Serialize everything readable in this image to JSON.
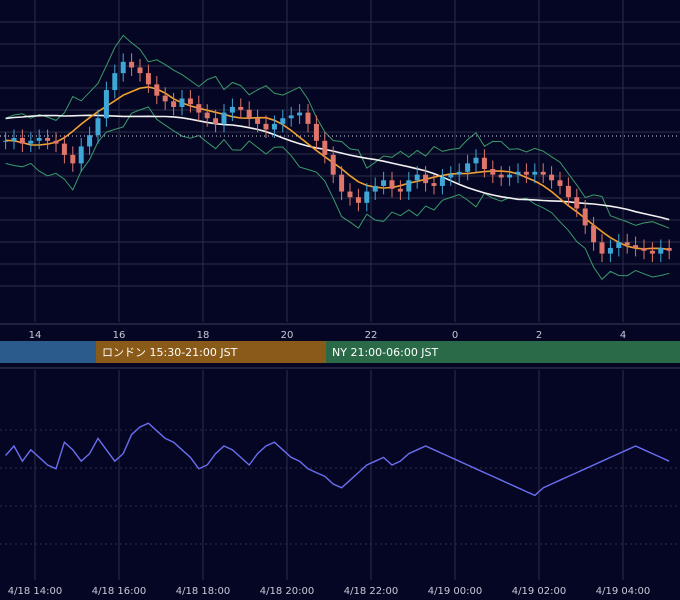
{
  "colors": {
    "background": "#050623",
    "grid": "#2a2d4a",
    "candle_up": "#3fa7d6",
    "candle_down": "#e0766a",
    "ma_short": "#f0a030",
    "ma_long": "#f2f2f2",
    "bollinger": "#3a9a6a",
    "rsi_line": "#6a6ef0",
    "session_tokyo": "#2b5a8c",
    "session_london": "#8a5a18",
    "session_ny": "#2a6a48"
  },
  "sessions": [
    {
      "label": "",
      "color_key": "session_tokyo"
    },
    {
      "label": "ロンドン 15:30-21:00 JST",
      "color_key": "session_london"
    },
    {
      "label": "NY 21:00-06:00 JST",
      "color_key": "session_ny"
    }
  ],
  "chart_data": [
    {
      "type": "candlestick",
      "x_axis_hour_ticks": [
        "14",
        "16",
        "18",
        "20",
        "22",
        "0",
        "2",
        "4"
      ],
      "x_range_hours": [
        13.2,
        29.2
      ],
      "y_range": [
        0,
        100
      ],
      "grid": true,
      "series": [
        {
          "name": "candles",
          "hours": [
            13.3,
            13.5,
            13.7,
            13.9,
            14.1,
            14.3,
            14.5,
            14.7,
            14.9,
            15.1,
            15.3,
            15.5,
            15.7,
            15.9,
            16.1,
            16.3,
            16.5,
            16.7,
            16.9,
            17.1,
            17.3,
            17.5,
            17.7,
            17.9,
            18.1,
            18.3,
            18.5,
            18.7,
            18.9,
            19.1,
            19.3,
            19.5,
            19.7,
            19.9,
            20.1,
            20.3,
            20.5,
            20.7,
            20.9,
            21.1,
            21.3,
            21.5,
            21.7,
            21.9,
            22.1,
            22.3,
            22.5,
            22.7,
            22.9,
            23.1,
            23.3,
            23.5,
            23.7,
            23.9,
            24.1,
            24.3,
            24.5,
            24.7,
            24.9,
            25.1,
            25.3,
            25.5,
            25.7,
            25.9,
            26.1,
            26.3,
            26.5,
            26.7,
            26.9,
            27.1,
            27.3,
            27.5,
            27.7,
            27.9,
            28.1,
            28.3,
            28.5,
            28.7,
            28.9,
            29.1
          ],
          "close": [
            60,
            61,
            59,
            60,
            61,
            60,
            59,
            55,
            52,
            58,
            62,
            68,
            78,
            84,
            88,
            86,
            84,
            80,
            76,
            74,
            72,
            75,
            73,
            70,
            68,
            66,
            70,
            72,
            71,
            68,
            66,
            64,
            66,
            68,
            69,
            70,
            66,
            60,
            55,
            48,
            42,
            40,
            38,
            42,
            44,
            46,
            43,
            42,
            46,
            48,
            45,
            44,
            47,
            48,
            49,
            52,
            54,
            50,
            48,
            47,
            48,
            49,
            48,
            49,
            48,
            46,
            44,
            40,
            36,
            30,
            24,
            20,
            22,
            24,
            23,
            22,
            21,
            20,
            22,
            21
          ]
        }
      ]
    },
    {
      "type": "line",
      "x_axis_labels": [
        "4/18 14:00",
        "4/18 16:00",
        "4/18 18:00",
        "4/18 20:00",
        "4/18 22:00",
        "4/19 00:00",
        "4/19 02:00",
        "4/19 04:00"
      ],
      "series": [
        {
          "name": "rsi",
          "values": [
            55,
            60,
            52,
            58,
            54,
            50,
            48,
            62,
            58,
            52,
            56,
            64,
            58,
            52,
            56,
            66,
            70,
            72,
            68,
            64,
            62,
            58,
            54,
            48,
            50,
            56,
            60,
            58,
            54,
            50,
            56,
            60,
            62,
            58,
            54,
            52,
            48,
            46,
            44,
            40,
            38,
            42,
            46,
            50,
            52,
            54,
            50,
            52,
            56,
            58,
            60,
            58,
            56,
            54,
            52,
            50,
            48,
            46,
            44,
            42,
            40,
            38,
            36,
            34,
            38,
            40,
            42,
            44,
            46,
            48,
            50,
            52,
            54,
            56,
            58,
            60,
            58,
            56,
            54,
            52
          ]
        }
      ]
    }
  ]
}
